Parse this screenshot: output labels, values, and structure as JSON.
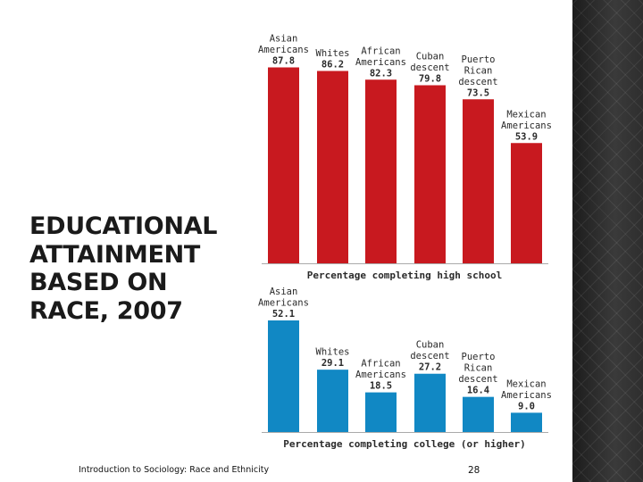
{
  "slide": {
    "title": "EDUCATIONAL ATTAINMENT BASED ON RACE, 2007",
    "footer": "Introduction to Sociology: Race and Ethnicity",
    "page_number": "28"
  },
  "colors": {
    "high_school_bar": "#c8191f",
    "college_bar": "#1188c4",
    "baseline": "#aaaaaa",
    "text": "#2a2a2a"
  },
  "chart_data": [
    {
      "type": "bar",
      "title": "",
      "xlabel": "Percentage completing high school",
      "ylabel": "",
      "ylim": [
        0,
        100
      ],
      "grid": false,
      "categories": [
        [
          "Asian",
          "Americans"
        ],
        [
          "Whites"
        ],
        [
          "African",
          "Americans"
        ],
        [
          "Cuban",
          "descent"
        ],
        [
          "Puerto",
          "Rican",
          "descent"
        ],
        [
          "Mexican",
          "Americans"
        ]
      ],
      "values": [
        87.8,
        86.2,
        82.3,
        79.8,
        73.5,
        53.9
      ],
      "value_labels": [
        "87.8",
        "86.2",
        "82.3",
        "79.8",
        "73.5",
        "53.9"
      ]
    },
    {
      "type": "bar",
      "title": "",
      "xlabel": "Percentage completing college (or higher)",
      "ylabel": "",
      "ylim": [
        0,
        60
      ],
      "grid": false,
      "categories": [
        [
          "Asian",
          "Americans"
        ],
        [
          "Whites"
        ],
        [
          "African",
          "Americans"
        ],
        [
          "Cuban",
          "descent"
        ],
        [
          "Puerto",
          "Rican",
          "descent"
        ],
        [
          "Mexican",
          "Americans"
        ]
      ],
      "values": [
        52.1,
        29.1,
        18.5,
        27.2,
        16.4,
        9.0
      ],
      "value_labels": [
        "52.1",
        "29.1",
        "18.5",
        "27.2",
        "16.4",
        "9.0"
      ]
    }
  ]
}
